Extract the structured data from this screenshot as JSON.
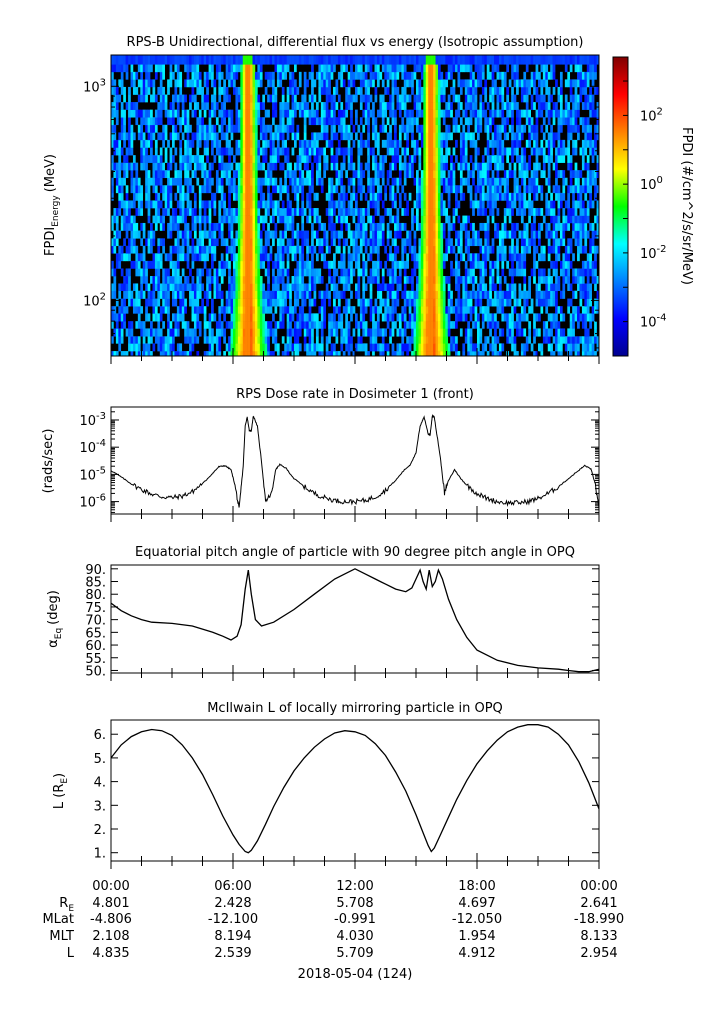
{
  "chart_data": [
    {
      "type": "heatmap",
      "title": "RPS-B  Unidirectional, differential flux vs energy (Isotropic assumption)",
      "ylabel": "FPDI",
      "ylabel_sub": "Energy",
      "ylabel_unit": "(MeV)",
      "yscale": "log",
      "ylim": [
        55,
        1400
      ],
      "y_ticks": [
        {
          "value": 100,
          "base": "10",
          "exp": "2"
        },
        {
          "value": 1000,
          "base": "10",
          "exp": "3"
        }
      ],
      "xlim": [
        0,
        24
      ],
      "x_ticks": [
        0,
        6,
        12,
        18,
        24
      ],
      "energy_channel_edges": [
        55,
        58,
        63,
        68,
        74,
        80,
        87,
        94,
        102,
        111,
        120,
        130,
        141,
        153,
        166,
        180,
        195,
        212,
        230,
        249,
        270,
        293,
        318,
        345,
        374,
        406,
        440,
        477,
        518,
        562,
        609,
        661,
        717,
        778,
        844,
        915,
        993,
        1077,
        1168,
        1267,
        1400
      ],
      "belt_crossings_hours": [
        6.75,
        15.75
      ],
      "colorbar": {
        "label": "FPDI (#/cm^2/s/sr/MeV)",
        "scale": "log",
        "range": [
          1e-05,
          5000
        ],
        "ticks": [
          {
            "value": 0.0001,
            "base": "10",
            "exp": "-4"
          },
          {
            "value": 0.01,
            "base": "10",
            "exp": "-2"
          },
          {
            "value": 1,
            "base": "10",
            "exp": "0"
          },
          {
            "value": 100,
            "base": "10",
            "exp": "2"
          }
        ],
        "colors": [
          "#00008f",
          "#0000ff",
          "#0080ff",
          "#00ffff",
          "#00ff00",
          "#ffff00",
          "#ff8000",
          "#ff0000",
          "#800000"
        ]
      }
    },
    {
      "type": "line",
      "title": "RPS  Dose rate in Dosimeter 1 (front)",
      "ylabel": "(rads/sec)",
      "yscale": "log",
      "ylim": [
        3.5e-07,
        0.003
      ],
      "y_ticks": [
        {
          "value": 1e-06,
          "base": "10",
          "exp": "-6"
        },
        {
          "value": 1e-05,
          "base": "10",
          "exp": "-5"
        },
        {
          "value": 0.0001,
          "base": "10",
          "exp": "-4"
        },
        {
          "value": 0.001,
          "base": "10",
          "exp": "-3"
        }
      ],
      "xlim": [
        0,
        24
      ],
      "x_ticks": [
        0,
        6,
        12,
        18,
        24
      ],
      "series": [
        {
          "x": [
            0,
            0.5,
            1.0,
            1.5,
            2.0,
            2.5,
            3.0,
            3.5,
            4.0,
            4.5,
            5.0,
            5.3,
            5.6,
            5.9,
            6.1,
            6.3,
            6.5,
            6.6,
            6.7,
            6.8,
            6.9,
            7.0,
            7.2,
            7.4,
            7.6,
            7.9,
            8.1,
            8.3,
            8.6,
            9.0,
            9.5,
            10.0,
            10.5,
            11.0,
            11.5,
            12.0,
            12.5,
            13.0,
            13.5,
            14.0,
            14.4,
            14.7,
            15.0,
            15.2,
            15.4,
            15.6,
            15.7,
            15.8,
            15.9,
            16.0,
            16.2,
            16.4,
            16.6,
            16.9,
            17.2,
            17.5,
            18.0,
            18.5,
            19.0,
            19.5,
            20.0,
            20.5,
            21.0,
            21.5,
            22.0,
            22.5,
            23.0,
            23.3,
            23.6,
            23.8,
            24.0
          ],
          "y": [
            1.4e-05,
            8e-06,
            4.5e-06,
            2.8e-06,
            1.9e-06,
            1.5e-06,
            1.4e-06,
            1.6e-06,
            2.3e-06,
            4.5e-06,
            1.1e-05,
            1.9e-05,
            2.1e-05,
            1.5e-05,
            4e-06,
            5e-07,
            2e-05,
            0.0006,
            0.0013,
            0.0004,
            0.0004,
            0.0014,
            0.0006,
            3e-05,
            1e-06,
            2e-06,
            1.5e-05,
            2.3e-05,
            1.7e-05,
            7e-06,
            3.6e-06,
            2e-06,
            1.4e-06,
            1.1e-06,
            1e-06,
            1e-06,
            1.1e-06,
            1.5e-06,
            2.6e-06,
            6e-06,
            1.4e-05,
            2.2e-05,
            6e-05,
            0.0006,
            0.0013,
            0.0003,
            0.0003,
            0.0014,
            0.0013,
            0.0004,
            4e-05,
            2e-06,
            6e-06,
            1.5e-05,
            7e-06,
            4e-06,
            2e-06,
            1.3e-06,
            1e-06,
            9e-07,
            9e-07,
            1e-06,
            1.3e-06,
            2e-06,
            3.5e-06,
            7e-06,
            1.4e-05,
            2.1e-05,
            1.6e-05,
            5e-06,
            5e-07
          ]
        }
      ]
    },
    {
      "type": "line",
      "title": "Equatorial pitch angle of particle with 90 degree pitch angle in OPQ",
      "ylabel": "α",
      "ylabel_sub": "Eq",
      "ylabel_unit": "(deg)",
      "ylim": [
        49,
        91.5
      ],
      "y_ticks": [
        50,
        55,
        60,
        65,
        70,
        75,
        80,
        85,
        90
      ],
      "y_tick_labels": [
        "50.",
        "55.",
        "60.",
        "65.",
        "70.",
        "75.",
        "80.",
        "85.",
        "90."
      ],
      "xlim": [
        0,
        24
      ],
      "x_ticks": [
        0,
        6,
        12,
        18,
        24
      ],
      "series": [
        {
          "x": [
            0,
            0.5,
            1.0,
            1.5,
            2.0,
            3.0,
            4.0,
            5.0,
            5.5,
            5.9,
            6.2,
            6.4,
            6.6,
            6.75,
            6.9,
            7.1,
            7.4,
            8.0,
            9.0,
            10.0,
            11.0,
            11.5,
            12.0,
            12.5,
            13.0,
            13.5,
            14.0,
            14.5,
            14.8,
            15.0,
            15.2,
            15.35,
            15.5,
            15.65,
            15.8,
            15.95,
            16.1,
            16.3,
            16.6,
            17.0,
            17.5,
            18.0,
            19.0,
            20.0,
            21.0,
            22.0,
            22.5,
            23.0,
            23.5,
            24.0
          ],
          "y": [
            76.5,
            73.5,
            71.5,
            70,
            69,
            68.5,
            67.5,
            65,
            63.5,
            62,
            63.5,
            68,
            82,
            89.5,
            80,
            70,
            67.5,
            69,
            74,
            80,
            86,
            88,
            90,
            88,
            86,
            84,
            82,
            81,
            82.5,
            86,
            89.5,
            85,
            82,
            89.5,
            83,
            85,
            89.5,
            86,
            78,
            70,
            63,
            58,
            54,
            52,
            51,
            50.5,
            50,
            49.5,
            49.5,
            50.5
          ]
        }
      ]
    },
    {
      "type": "line",
      "title": "McIlwain L of locally mirroring particle in OPQ",
      "ylabel": "L (R",
      "ylabel_sub": "E",
      "ylabel_unit": ")",
      "ylim": [
        0.65,
        6.6
      ],
      "y_ticks": [
        1,
        2,
        3,
        4,
        5,
        6
      ],
      "y_tick_labels": [
        "1.",
        "2.",
        "3.",
        "4.",
        "5.",
        "6."
      ],
      "xlim": [
        0,
        24
      ],
      "x_ticks": [
        0,
        6,
        12,
        18,
        24
      ],
      "series": [
        {
          "x": [
            0,
            0.5,
            1.0,
            1.5,
            2.0,
            2.5,
            3.0,
            3.5,
            4.0,
            4.5,
            5.0,
            5.5,
            6.0,
            6.3,
            6.6,
            6.75,
            6.9,
            7.2,
            7.6,
            8.0,
            8.5,
            9.0,
            9.5,
            10.0,
            10.5,
            11.0,
            11.5,
            12.0,
            12.5,
            13.0,
            13.5,
            14.0,
            14.5,
            15.0,
            15.3,
            15.6,
            15.75,
            15.9,
            16.2,
            16.6,
            17.0,
            17.5,
            18.0,
            18.5,
            19.0,
            19.5,
            20.0,
            20.5,
            21.0,
            21.5,
            22.0,
            22.5,
            23.0,
            23.5,
            24.0
          ],
          "y": [
            5.0,
            5.55,
            5.9,
            6.1,
            6.2,
            6.15,
            5.95,
            5.55,
            5.0,
            4.3,
            3.45,
            2.55,
            1.75,
            1.35,
            1.05,
            1.0,
            1.1,
            1.5,
            2.2,
            2.95,
            3.75,
            4.45,
            5.0,
            5.45,
            5.8,
            6.05,
            6.15,
            6.1,
            5.95,
            5.6,
            5.1,
            4.4,
            3.6,
            2.6,
            1.95,
            1.3,
            1.05,
            1.2,
            1.75,
            2.5,
            3.25,
            4.05,
            4.75,
            5.3,
            5.75,
            6.1,
            6.3,
            6.4,
            6.4,
            6.3,
            6.0,
            5.55,
            4.85,
            3.95,
            2.85
          ]
        }
      ]
    }
  ],
  "time_axis": {
    "tick_labels": [
      "00:00",
      "06:00",
      "12:00",
      "18:00",
      "00:00"
    ],
    "date_label": "2018-05-04 (124)"
  },
  "ephemeris": {
    "rows": [
      {
        "label": "R",
        "label_sub": "E",
        "values": [
          "4.801",
          "2.428",
          "5.708",
          "4.697",
          "2.641"
        ]
      },
      {
        "label": "MLat",
        "label_sub": "",
        "values": [
          "-4.806",
          "-12.100",
          "-0.991",
          "-12.050",
          "-18.990"
        ]
      },
      {
        "label": "MLT",
        "label_sub": "",
        "values": [
          "2.108",
          "8.194",
          "4.030",
          "1.954",
          "8.133"
        ]
      },
      {
        "label": "L",
        "label_sub": "",
        "values": [
          "4.835",
          "2.539",
          "5.709",
          "4.912",
          "2.954"
        ]
      }
    ]
  },
  "colors": {
    "line": "#000000",
    "empty_bin": "#000000",
    "frame": "#000000"
  }
}
